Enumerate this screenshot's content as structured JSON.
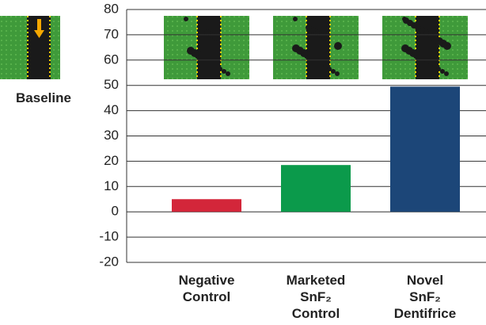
{
  "chart_data": {
    "type": "bar",
    "baseline_label": "Baseline",
    "categories": [
      "Negative Control",
      "Marketed SnF₂ Control",
      "Novel SnF₂ Dentifrice"
    ],
    "values": [
      5,
      18.5,
      49.5
    ],
    "colors": [
      "#d3263a",
      "#0b9a4b",
      "#1c4678"
    ],
    "ylim": [
      -20,
      80
    ],
    "yticks": [
      -20,
      -10,
      0,
      10,
      20,
      30,
      40,
      50,
      60,
      70,
      80
    ],
    "grid": true
  }
}
